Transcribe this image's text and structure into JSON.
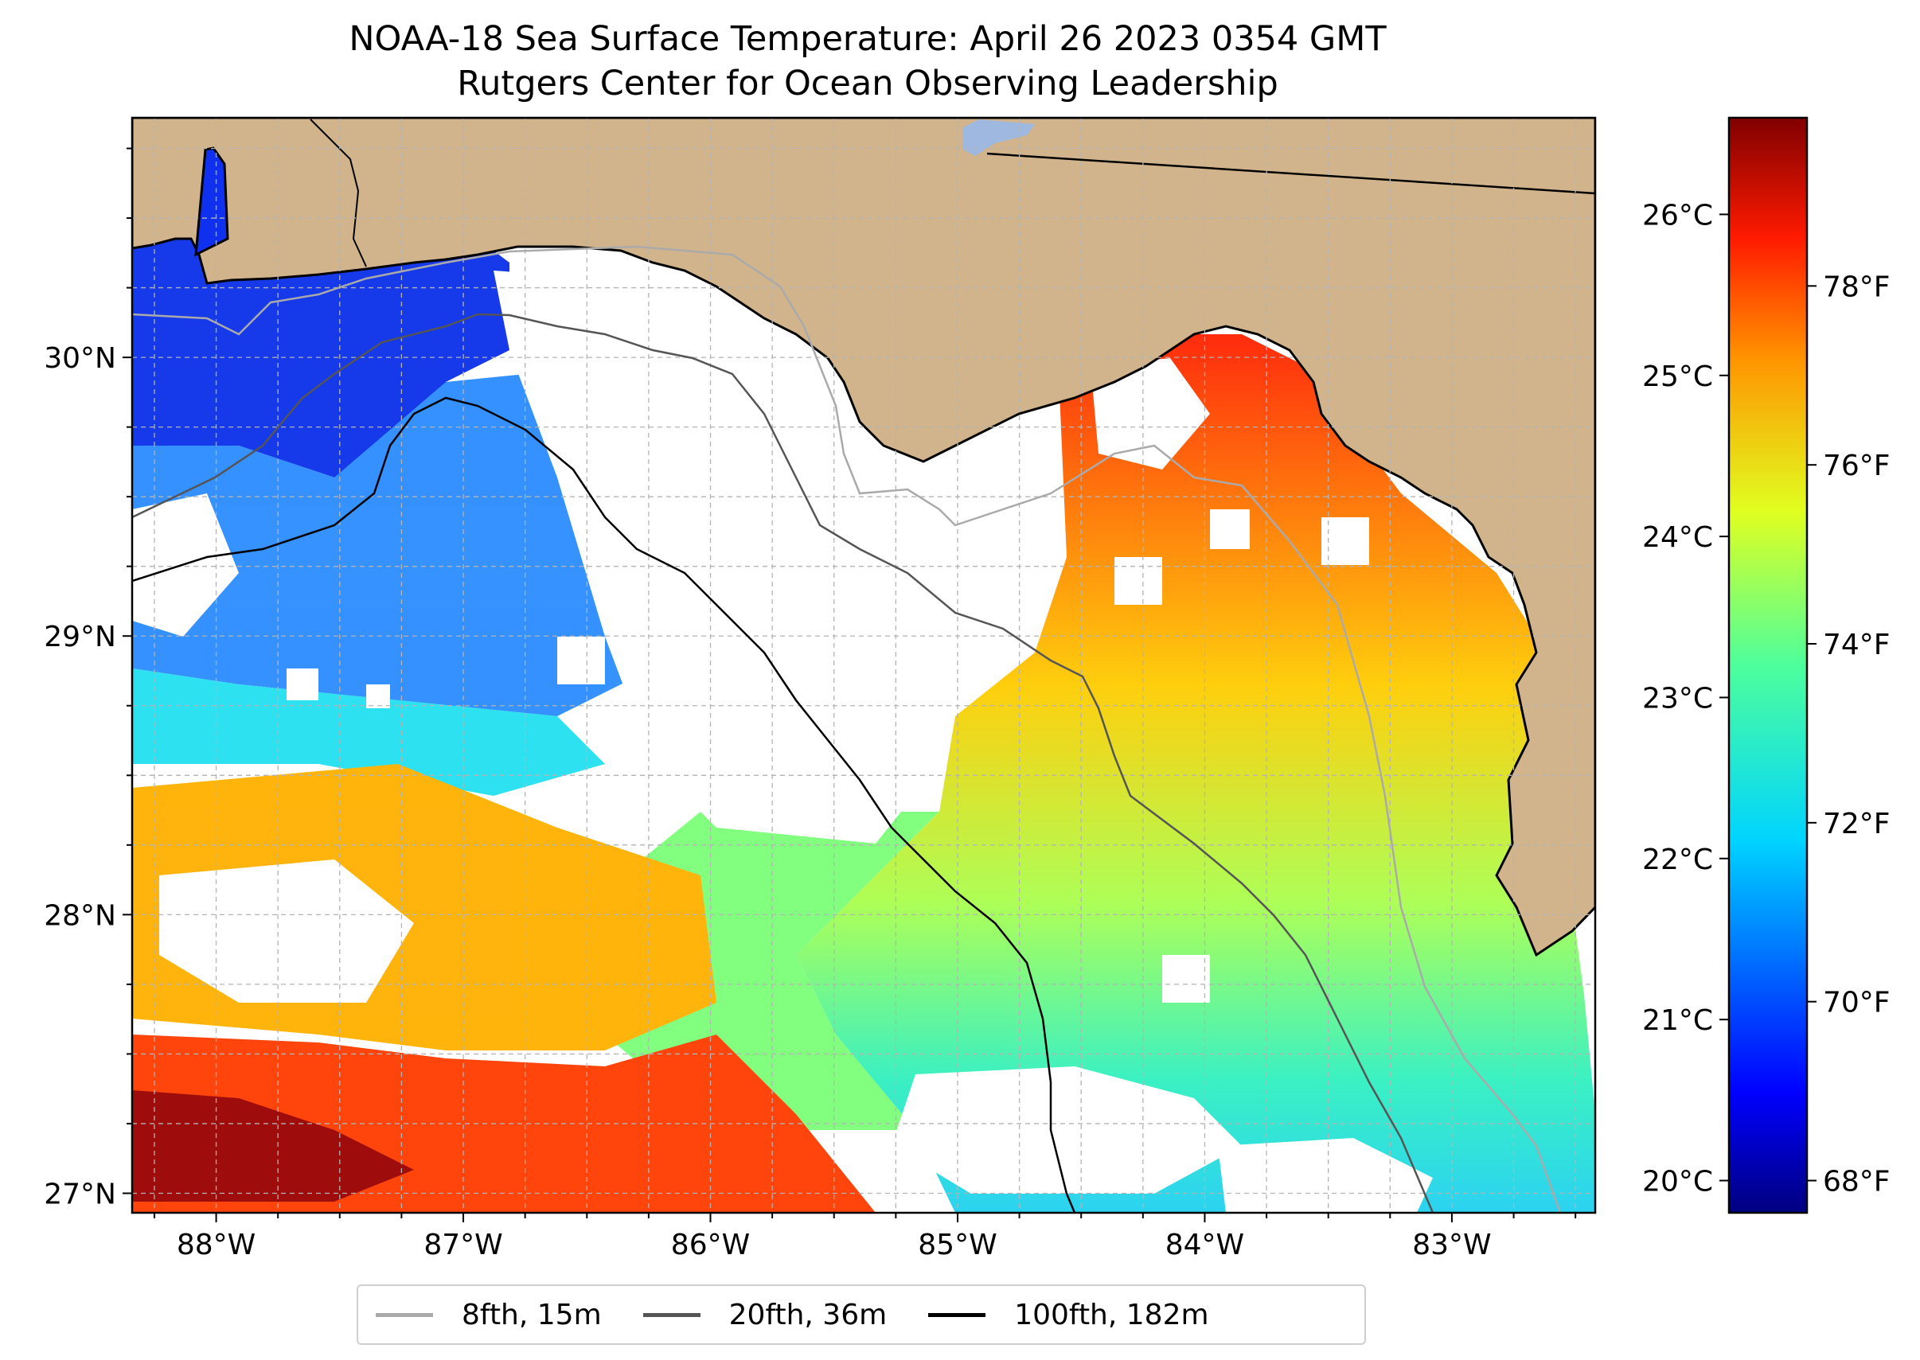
{
  "title": {
    "line1": "NOAA-18 Sea Surface Temperature: April 26 2023 0354 GMT",
    "line2": "Rutgers Center for Ocean Observing Leadership"
  },
  "map": {
    "extent": {
      "lon_min": -88.34,
      "lon_max": -82.42,
      "lat_min": 26.93,
      "lat_max": 30.86
    },
    "lon_ticks": [
      {
        "value": -88,
        "label": "88°W"
      },
      {
        "value": -87,
        "label": "87°W"
      },
      {
        "value": -86,
        "label": "86°W"
      },
      {
        "value": -85,
        "label": "85°W"
      },
      {
        "value": -84,
        "label": "84°W"
      },
      {
        "value": -83,
        "label": "83°W"
      }
    ],
    "lat_ticks": [
      {
        "value": 30,
        "label": "30°N"
      },
      {
        "value": 29,
        "label": "29°N"
      },
      {
        "value": 28,
        "label": "28°N"
      },
      {
        "value": 27,
        "label": "27°N"
      }
    ],
    "colors": {
      "land": "#d2b48c",
      "no_data": "#ffffff",
      "lake": "#9fb8e0",
      "grid": "#b4b4b4",
      "coast": "#000000"
    }
  },
  "colorbar": {
    "colormap": "jet",
    "celsius_range": [
      19.8,
      26.6
    ],
    "celsius_ticks": [
      {
        "value": 26,
        "label": "26°C"
      },
      {
        "value": 25,
        "label": "25°C"
      },
      {
        "value": 24,
        "label": "24°C"
      },
      {
        "value": 23,
        "label": "23°C"
      },
      {
        "value": 22,
        "label": "22°C"
      },
      {
        "value": 21,
        "label": "21°C"
      },
      {
        "value": 20,
        "label": "20°C"
      }
    ],
    "fahrenheit_ticks": [
      {
        "value": 78,
        "label": "78°F"
      },
      {
        "value": 76,
        "label": "76°F"
      },
      {
        "value": 74,
        "label": "74°F"
      },
      {
        "value": 72,
        "label": "72°F"
      },
      {
        "value": 70,
        "label": "70°F"
      },
      {
        "value": 68,
        "label": "68°F"
      }
    ]
  },
  "legend": {
    "items": [
      {
        "label": "8fth, 15m",
        "color": "#aaaaaa"
      },
      {
        "label": "20fth, 36m",
        "color": "#555555"
      },
      {
        "label": "100fth, 182m",
        "color": "#000000"
      }
    ]
  }
}
